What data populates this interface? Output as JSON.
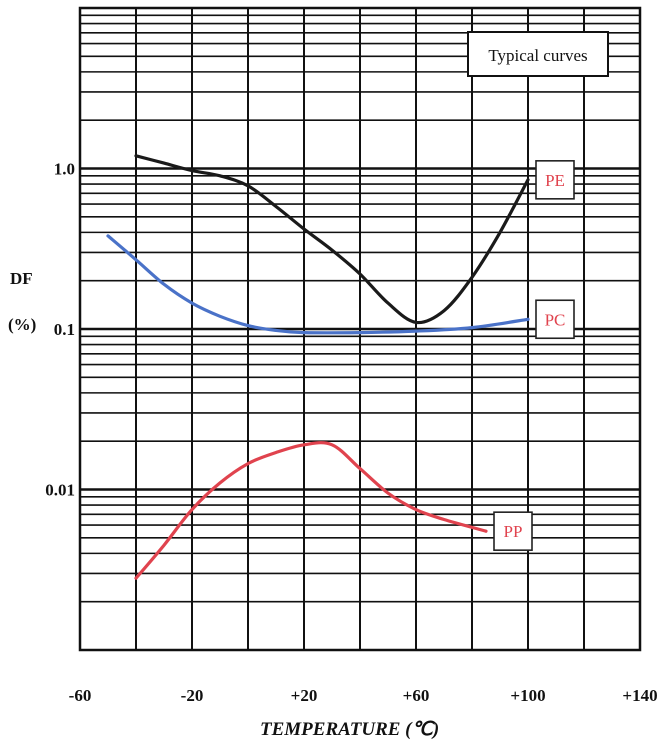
{
  "chart_data": {
    "type": "line",
    "title": "",
    "xlabel": "TEMPERATURE (℃)",
    "ylabel": "DF",
    "ylabel_unit": "(%)",
    "x_scale": "linear",
    "y_scale": "log",
    "xlim": [
      -60,
      140
    ],
    "ylim": [
      0.001,
      10
    ],
    "x_ticks": [
      -60,
      -20,
      20,
      60,
      100,
      140
    ],
    "x_tick_labels": [
      "-60",
      "-20",
      "+20",
      "+60",
      "+100",
      "+140"
    ],
    "y_ticks": [
      0.01,
      0.1,
      1.0
    ],
    "y_tick_labels": [
      "0.01",
      "0.1",
      "1.0"
    ],
    "grid": true,
    "legend": {
      "text": "Typical curves",
      "placement": "top-right"
    },
    "series": [
      {
        "name": "PE",
        "color": "#1a1a1a",
        "x": [
          -40,
          -30,
          -20,
          -10,
          0,
          10,
          20,
          30,
          40,
          50,
          60,
          70,
          80,
          90,
          100
        ],
        "y": [
          1.2,
          1.08,
          0.97,
          0.9,
          0.78,
          0.58,
          0.42,
          0.31,
          0.22,
          0.145,
          0.11,
          0.13,
          0.21,
          0.4,
          0.85
        ]
      },
      {
        "name": "PC",
        "color": "#4a72c8",
        "x": [
          -50,
          -40,
          -30,
          -20,
          -10,
          0,
          10,
          20,
          40,
          60,
          80,
          100
        ],
        "y": [
          0.38,
          0.27,
          0.19,
          0.145,
          0.12,
          0.105,
          0.098,
          0.095,
          0.095,
          0.097,
          0.102,
          0.115
        ]
      },
      {
        "name": "PP",
        "color": "#e0434e",
        "x": [
          -40,
          -30,
          -20,
          -10,
          0,
          10,
          20,
          30,
          40,
          50,
          60,
          70,
          85
        ],
        "y": [
          0.0028,
          0.0045,
          0.0075,
          0.011,
          0.0145,
          0.017,
          0.019,
          0.019,
          0.0135,
          0.0095,
          0.0075,
          0.0065,
          0.0055
        ]
      }
    ]
  }
}
